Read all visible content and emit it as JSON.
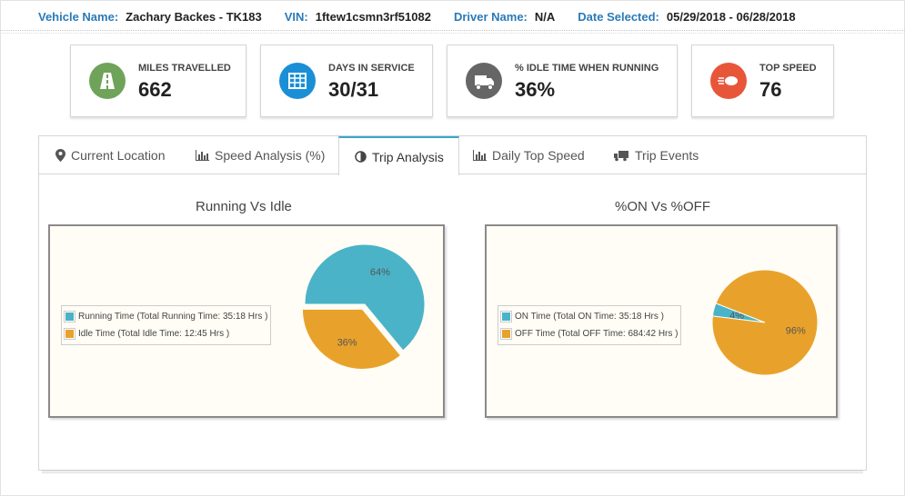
{
  "header": {
    "vehicle_label": "Vehicle Name:",
    "vehicle_value": "Zachary Backes - TK183",
    "vin_label": "VIN:",
    "vin_value": "1ftew1csmn3rf51082",
    "driver_label": "Driver Name:",
    "driver_value": "N/A",
    "date_label": "Date Selected:",
    "date_value": "05/29/2018 - 06/28/2018"
  },
  "stats": [
    {
      "label": "MILES TRAVELLED",
      "value": "662",
      "icon": "road-icon",
      "color": "#6fa35a"
    },
    {
      "label": "DAYS IN SERVICE",
      "value": "30/31",
      "icon": "calendar-icon",
      "color": "#1a8fd6"
    },
    {
      "label": "% IDLE TIME WHEN RUNNING",
      "value": "36%",
      "icon": "truck-icon",
      "color": "#666666"
    },
    {
      "label": "TOP SPEED",
      "value": "76",
      "icon": "speed-icon",
      "color": "#e8563a"
    }
  ],
  "tabs": [
    {
      "label": "Current Location",
      "icon": "map-marker-icon"
    },
    {
      "label": "Speed Analysis (%)",
      "icon": "bar-chart-icon"
    },
    {
      "label": "Trip Analysis",
      "icon": "pie-chart-icon",
      "active": true
    },
    {
      "label": "Daily Top Speed",
      "icon": "bar-chart-icon"
    },
    {
      "label": "Trip Events",
      "icon": "truck-icon"
    }
  ],
  "chart_data": [
    {
      "type": "pie",
      "title": "Running Vs Idle",
      "slices": [
        {
          "name": "Running Time (Total Running Time: 35:18 Hrs )",
          "value": 64,
          "label": "64%",
          "color": "#4ab3c8"
        },
        {
          "name": "Idle Time (Total Idle Time: 12:45 Hrs )",
          "value": 36,
          "label": "36%",
          "color": "#e8a22c"
        }
      ],
      "legend": "left"
    },
    {
      "type": "pie",
      "title": "%ON Vs %OFF",
      "slices": [
        {
          "name": "ON Time (Total ON Time: 35:18 Hrs )",
          "value": 4,
          "label": "4%",
          "color": "#4ab3c8"
        },
        {
          "name": "OFF Time (Total OFF Time: 684:42 Hrs )",
          "value": 96,
          "label": "96%",
          "color": "#e8a22c"
        }
      ],
      "legend": "left"
    }
  ]
}
